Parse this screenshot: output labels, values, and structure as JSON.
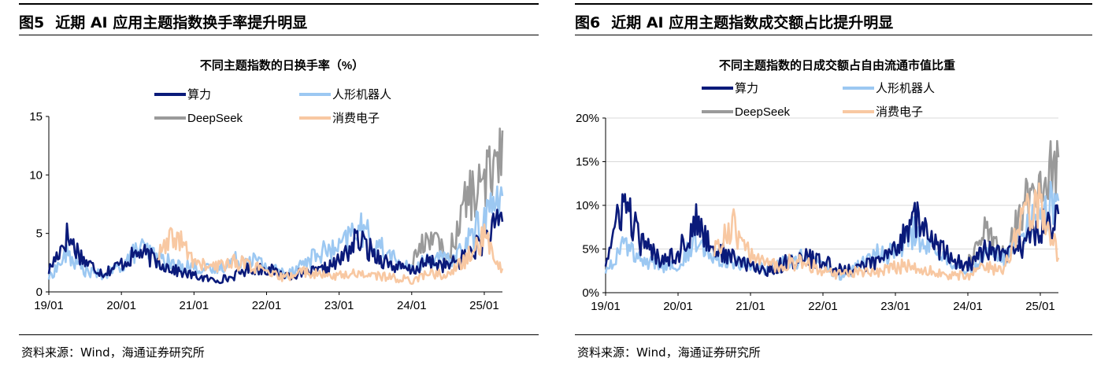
{
  "figures": [
    {
      "fig_label": "图5",
      "fig_title": "近期 AI 应用主题指数换手率提升明显",
      "source": "资料来源：Wind，海通证券研究所"
    },
    {
      "fig_label": "图6",
      "fig_title": "近期 AI 应用主题指数成交额占比提升明显",
      "source": "资料来源：Wind，海通证券研究所"
    }
  ],
  "chart_data": [
    {
      "type": "line",
      "title": "不同主题指数的日换手率（%）",
      "xlabel": "",
      "ylabel": "",
      "ylim": [
        0,
        15
      ],
      "yticks": [
        "0",
        "5",
        "10",
        "15"
      ],
      "xticks": [
        "19/01",
        "20/01",
        "21/01",
        "22/01",
        "23/01",
        "24/01",
        "25/01"
      ],
      "x": [
        "19/01",
        "19/04",
        "19/07",
        "19/10",
        "20/01",
        "20/04",
        "20/07",
        "20/10",
        "21/01",
        "21/04",
        "21/07",
        "21/10",
        "22/01",
        "22/04",
        "22/07",
        "22/10",
        "23/01",
        "23/04",
        "23/07",
        "23/10",
        "24/01",
        "24/04",
        "24/07",
        "24/10",
        "25/01",
        "25/02"
      ],
      "series": [
        {
          "name": "算力",
          "color": "#0a1a7a",
          "values": [
            1.8,
            4.8,
            2.6,
            1.6,
            2.4,
            3.4,
            2.6,
            1.8,
            1.4,
            1.0,
            1.2,
            2.0,
            2.0,
            1.4,
            1.6,
            1.8,
            2.6,
            4.5,
            3.2,
            2.2,
            1.8,
            2.6,
            2.2,
            3.0,
            4.5,
            6.0
          ]
        },
        {
          "name": "人形机器人",
          "color": "#9cc8f2",
          "values": [
            1.2,
            3.2,
            1.8,
            1.4,
            2.2,
            3.8,
            3.0,
            2.2,
            2.2,
            1.8,
            2.6,
            3.0,
            2.2,
            1.6,
            2.4,
            3.4,
            3.6,
            5.6,
            4.2,
            2.8,
            1.8,
            3.0,
            2.6,
            4.0,
            6.5,
            8.2
          ]
        },
        {
          "name": "DeepSeek",
          "color": "#9a9a9a",
          "values": [
            null,
            null,
            null,
            null,
            null,
            null,
            null,
            null,
            null,
            null,
            null,
            null,
            null,
            null,
            null,
            null,
            null,
            null,
            null,
            null,
            2.6,
            5.0,
            2.8,
            8.0,
            9.0,
            13.8
          ]
        },
        {
          "name": "消费电子",
          "color": "#f8c8a2",
          "values": [
            null,
            null,
            null,
            null,
            null,
            null,
            3.0,
            4.8,
            2.6,
            2.0,
            2.6,
            2.4,
            1.6,
            1.2,
            1.8,
            1.4,
            1.4,
            1.6,
            1.4,
            1.2,
            1.0,
            1.6,
            1.4,
            2.8,
            4.6,
            2.0
          ]
        }
      ]
    },
    {
      "type": "line",
      "title": "不同主题指数的日成交额占自由流通市值比重",
      "xlabel": "",
      "ylabel": "",
      "ylim": [
        0,
        20
      ],
      "yticks": [
        "0%",
        "5%",
        "10%",
        "15%",
        "20%"
      ],
      "xticks": [
        "19/01",
        "20/01",
        "21/01",
        "22/01",
        "23/01",
        "24/01",
        "25/01"
      ],
      "x": [
        "19/01",
        "19/04",
        "19/07",
        "19/10",
        "20/01",
        "20/04",
        "20/07",
        "20/10",
        "21/01",
        "21/04",
        "21/07",
        "21/10",
        "22/01",
        "22/04",
        "22/07",
        "22/10",
        "23/01",
        "23/04",
        "23/07",
        "23/10",
        "24/01",
        "24/04",
        "24/07",
        "24/10",
        "25/01",
        "25/02"
      ],
      "series": [
        {
          "name": "算力",
          "color": "#0a1a7a",
          "values": [
            3.5,
            10.5,
            5.5,
            4.0,
            4.5,
            8.0,
            5.0,
            4.0,
            3.0,
            2.5,
            3.5,
            4.0,
            3.5,
            2.5,
            3.0,
            3.5,
            5.0,
            9.0,
            6.0,
            4.0,
            3.0,
            5.0,
            4.0,
            5.5,
            7.5,
            9.0
          ]
        },
        {
          "name": "人形机器人",
          "color": "#9cc8f2",
          "values": [
            2.5,
            5.5,
            3.5,
            3.0,
            3.5,
            6.0,
            4.5,
            3.5,
            3.0,
            2.5,
            3.5,
            4.0,
            3.0,
            2.0,
            3.0,
            4.5,
            4.5,
            7.0,
            5.0,
            3.5,
            2.5,
            4.5,
            4.0,
            6.5,
            9.5,
            10.5
          ]
        },
        {
          "name": "DeepSeek",
          "color": "#9a9a9a",
          "values": [
            null,
            null,
            null,
            null,
            null,
            null,
            null,
            null,
            null,
            null,
            null,
            null,
            null,
            null,
            null,
            null,
            null,
            null,
            null,
            null,
            3.5,
            7.0,
            4.0,
            9.5,
            13.5,
            15.5
          ]
        },
        {
          "name": "消费电子",
          "color": "#f8c8a2",
          "values": [
            null,
            null,
            null,
            null,
            null,
            null,
            4.5,
            8.0,
            4.0,
            3.0,
            3.5,
            3.5,
            2.5,
            2.0,
            2.5,
            2.5,
            3.0,
            3.0,
            2.5,
            2.0,
            2.0,
            3.0,
            2.5,
            8.5,
            10.0,
            4.0
          ]
        }
      ]
    }
  ]
}
